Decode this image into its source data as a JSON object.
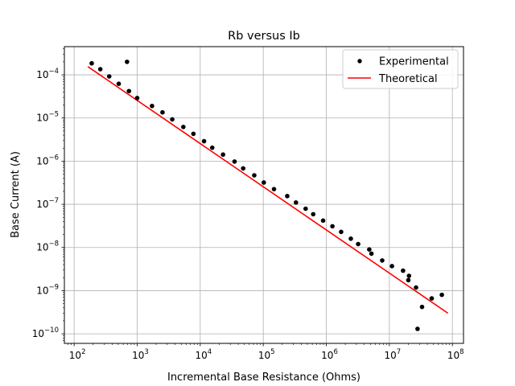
{
  "chart_data": {
    "type": "scatter",
    "title": "Rb versus Ib",
    "xlabel": "Incremental Base Resistance (Ohms)",
    "ylabel": "Base Current (A)",
    "xscale": "log",
    "yscale": "log",
    "xlim": [
      70,
      150000000
    ],
    "ylim": [
      6e-11,
      0.00045
    ],
    "grid": true,
    "legend_position": "top-right",
    "x_ticks": [
      {
        "value": 100,
        "base": "10",
        "exp": "2"
      },
      {
        "value": 1000,
        "base": "10",
        "exp": "3"
      },
      {
        "value": 10000,
        "base": "10",
        "exp": "4"
      },
      {
        "value": 100000,
        "base": "10",
        "exp": "5"
      },
      {
        "value": 1000000,
        "base": "10",
        "exp": "6"
      },
      {
        "value": 10000000,
        "base": "10",
        "exp": "7"
      },
      {
        "value": 100000000,
        "base": "10",
        "exp": "8"
      }
    ],
    "y_ticks": [
      {
        "value": 1e-10,
        "base": "10",
        "exp": "−10"
      },
      {
        "value": 1e-09,
        "base": "10",
        "exp": "−9"
      },
      {
        "value": 1e-08,
        "base": "10",
        "exp": "−8"
      },
      {
        "value": 1e-07,
        "base": "10",
        "exp": "−7"
      },
      {
        "value": 1e-06,
        "base": "10",
        "exp": "−6"
      },
      {
        "value": 1e-05,
        "base": "10",
        "exp": "−5"
      },
      {
        "value": 0.0001,
        "base": "10",
        "exp": "−4"
      }
    ],
    "series": [
      {
        "name": "Experimental",
        "kind": "scatter",
        "color": "#000000",
        "points": [
          [
            190,
            0.000185
          ],
          [
            260,
            0.000135
          ],
          [
            360,
            9.2e-05
          ],
          [
            510,
            6.2e-05
          ],
          [
            690,
            0.0002
          ],
          [
            740,
            4.2e-05
          ],
          [
            1000,
            2.9e-05
          ],
          [
            1720,
            1.9e-05
          ],
          [
            2520,
            1.35e-05
          ],
          [
            3600,
            9.3e-06
          ],
          [
            5400,
            6.2e-06
          ],
          [
            7800,
            4.3e-06
          ],
          [
            11500,
            2.9e-06
          ],
          [
            15500,
            2.05e-06
          ],
          [
            23000,
            1.42e-06
          ],
          [
            35000,
            9.8e-07
          ],
          [
            48000,
            6.8e-07
          ],
          [
            72000,
            4.7e-07
          ],
          [
            102000,
            3.2e-07
          ],
          [
            148000,
            2.25e-07
          ],
          [
            240000,
            1.55e-07
          ],
          [
            330000,
            1.1e-07
          ],
          [
            470000,
            7.9e-08
          ],
          [
            620000,
            5.9e-08
          ],
          [
            890000,
            4.2e-08
          ],
          [
            1250000,
            3.1e-08
          ],
          [
            1720000,
            2.3e-08
          ],
          [
            2450000,
            1.6e-08
          ],
          [
            3200000,
            1.2e-08
          ],
          [
            4800000,
            9e-09
          ],
          [
            5200000,
            7.2e-09
          ],
          [
            7700000,
            5e-09
          ],
          [
            11000000,
            3.7e-09
          ],
          [
            16500000,
            2.9e-09
          ],
          [
            20500000,
            2.2e-09
          ],
          [
            20000000,
            1.75e-09
          ],
          [
            26500000,
            1.18e-09
          ],
          [
            28000000,
            1.3e-10
          ],
          [
            33000000,
            4.2e-10
          ],
          [
            47000000,
            6.6e-10
          ],
          [
            68000000,
            8e-10
          ]
        ]
      },
      {
        "name": "Theoretical",
        "kind": "line",
        "color": "#ff0000",
        "points": [
          [
            165,
            0.000155
          ],
          [
            85000000,
            3e-10
          ]
        ]
      }
    ]
  }
}
